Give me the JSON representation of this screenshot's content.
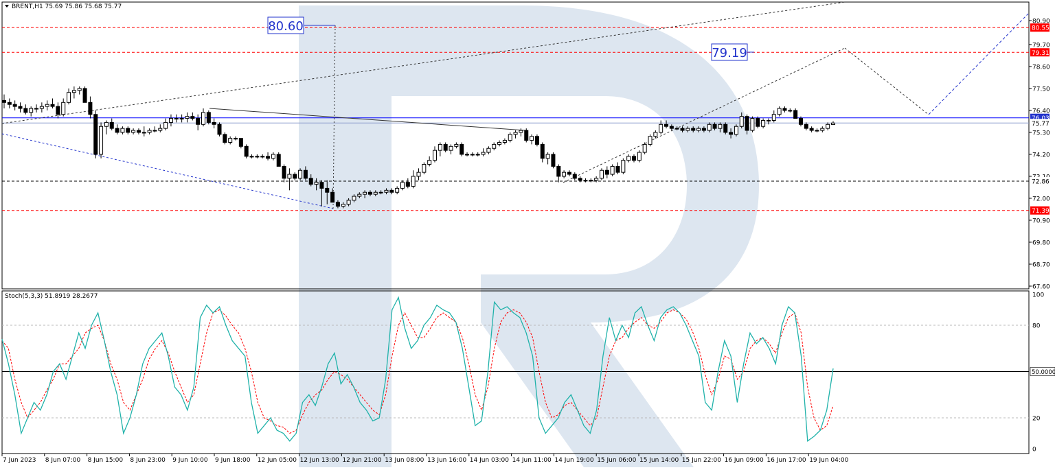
{
  "chart_data": {
    "type": "candlestick",
    "header": "BRENT,H1  75.69 75.86 75.68 75.77",
    "price_axis": {
      "min": 67.2,
      "max": 81.4,
      "ticks": [
        "80.90",
        "79.70",
        "78.60",
        "77.50",
        "76.40",
        "75.30",
        "74.20",
        "73.10",
        "72.00",
        "70.90",
        "69.80",
        "68.70",
        "67.60"
      ]
    },
    "time_labels": [
      "7 Jun 2023",
      "8 Jun 07:00",
      "8 Jun 15:00",
      "8 Jun 23:00",
      "9 Jun 10:00",
      "9 Jun 18:00",
      "12 Jun 05:00",
      "12 Jun 13:00",
      "12 Jun 21:00",
      "13 Jun 08:00",
      "13 Jun 16:00",
      "14 Jun 03:00",
      "14 Jun 11:00",
      "14 Jun 19:00",
      "15 Jun 06:00",
      "15 Jun 14:00",
      "15 Jun 22:00",
      "16 Jun 09:00",
      "16 Jun 17:00",
      "19 Jun 04:00"
    ],
    "levels": [
      {
        "label": "80.55",
        "value": 80.55,
        "color": "#ff0000"
      },
      {
        "label": "79.31",
        "value": 79.31,
        "color": "#ff0000"
      },
      {
        "label": "76.03",
        "value": 76.03,
        "color": "#0000ff"
      },
      {
        "label": "75.77",
        "value": 75.77,
        "color": "#000000"
      },
      {
        "label": "72.86",
        "value": 72.86,
        "color": "#000000"
      },
      {
        "label": "71.39",
        "value": 71.39,
        "color": "#ff0000"
      }
    ],
    "annotations": [
      {
        "text": "80.60",
        "value": 80.6
      },
      {
        "text": "79.19",
        "value": 79.19
      }
    ],
    "candles": [
      [
        76.9,
        77.2,
        76.5,
        76.8
      ],
      [
        76.8,
        77.0,
        76.5,
        76.7
      ],
      [
        76.7,
        76.9,
        76.4,
        76.6
      ],
      [
        76.6,
        76.8,
        76.3,
        76.5
      ],
      [
        76.5,
        76.7,
        76.2,
        76.3
      ],
      [
        76.3,
        76.6,
        76.1,
        76.5
      ],
      [
        76.5,
        76.7,
        76.3,
        76.5
      ],
      [
        76.5,
        76.8,
        76.3,
        76.6
      ],
      [
        76.6,
        76.9,
        76.4,
        76.7
      ],
      [
        76.7,
        77.0,
        76.5,
        76.6
      ],
      [
        76.6,
        76.8,
        76.0,
        76.2
      ],
      [
        76.2,
        77.0,
        76.1,
        76.8
      ],
      [
        76.8,
        77.5,
        76.7,
        77.3
      ],
      [
        77.3,
        77.6,
        77.0,
        77.4
      ],
      [
        77.4,
        77.6,
        77.2,
        77.5
      ],
      [
        77.5,
        77.6,
        76.8,
        76.8
      ],
      [
        76.8,
        77.1,
        76.0,
        76.2
      ],
      [
        76.2,
        76.4,
        74.0,
        74.2
      ],
      [
        74.2,
        75.8,
        74.0,
        75.6
      ],
      [
        75.6,
        75.9,
        75.2,
        75.8
      ],
      [
        75.8,
        76.0,
        75.4,
        75.5
      ],
      [
        75.5,
        75.7,
        75.2,
        75.3
      ],
      [
        75.3,
        75.6,
        75.2,
        75.5
      ],
      [
        75.5,
        75.6,
        75.2,
        75.3
      ],
      [
        75.3,
        75.5,
        75.2,
        75.4
      ],
      [
        75.4,
        75.5,
        75.2,
        75.3
      ],
      [
        75.3,
        75.6,
        75.1,
        75.3
      ],
      [
        75.3,
        75.5,
        75.2,
        75.4
      ],
      [
        75.4,
        75.6,
        75.3,
        75.4
      ],
      [
        75.4,
        75.7,
        75.3,
        75.5
      ],
      [
        75.5,
        76.0,
        75.4,
        75.8
      ],
      [
        75.8,
        76.2,
        75.6,
        76.0
      ],
      [
        76.0,
        76.2,
        75.8,
        76.0
      ],
      [
        76.0,
        76.2,
        75.8,
        76.0
      ],
      [
        76.0,
        76.3,
        75.8,
        76.1
      ],
      [
        76.1,
        76.3,
        75.9,
        76.0
      ],
      [
        76.0,
        76.2,
        75.4,
        75.7
      ],
      [
        75.7,
        76.5,
        75.6,
        76.3
      ],
      [
        76.3,
        76.4,
        75.7,
        75.8
      ],
      [
        75.8,
        76.0,
        75.5,
        75.7
      ],
      [
        75.7,
        75.8,
        75.1,
        75.2
      ],
      [
        75.2,
        75.3,
        74.7,
        74.8
      ],
      [
        74.8,
        75.1,
        74.7,
        75.0
      ],
      [
        75.0,
        75.1,
        74.9,
        75.0
      ],
      [
        75.0,
        75.0,
        74.5,
        74.6
      ],
      [
        74.6,
        74.7,
        74.0,
        74.1
      ],
      [
        74.1,
        74.2,
        74.0,
        74.1
      ],
      [
        74.1,
        74.2,
        74.0,
        74.1
      ],
      [
        74.1,
        74.2,
        74.0,
        74.1
      ],
      [
        74.1,
        74.3,
        73.9,
        74.0
      ],
      [
        74.0,
        74.3,
        73.9,
        74.2
      ],
      [
        74.2,
        74.3,
        73.6,
        73.6
      ],
      [
        73.6,
        73.7,
        72.8,
        73.0
      ],
      [
        73.0,
        73.5,
        72.4,
        73.2
      ],
      [
        73.2,
        73.3,
        72.9,
        73.0
      ],
      [
        73.0,
        73.5,
        72.9,
        73.4
      ],
      [
        73.4,
        73.6,
        72.9,
        73.0
      ],
      [
        73.0,
        73.2,
        72.6,
        72.7
      ],
      [
        72.7,
        73.0,
        72.4,
        72.8
      ],
      [
        72.8,
        72.9,
        71.6,
        72.5
      ],
      [
        72.5,
        72.9,
        71.7,
        72.3
      ],
      [
        72.3,
        72.5,
        71.8,
        71.8
      ],
      [
        71.8,
        71.9,
        71.5,
        71.6
      ],
      [
        71.6,
        71.8,
        71.5,
        71.7
      ],
      [
        71.7,
        72.0,
        71.6,
        71.9
      ],
      [
        71.9,
        72.2,
        71.8,
        72.1
      ],
      [
        72.1,
        72.3,
        72.0,
        72.2
      ],
      [
        72.2,
        72.4,
        72.0,
        72.3
      ],
      [
        72.3,
        72.4,
        72.1,
        72.2
      ],
      [
        72.2,
        72.4,
        72.1,
        72.3
      ],
      [
        72.3,
        72.4,
        72.2,
        72.3
      ],
      [
        72.3,
        72.5,
        72.2,
        72.4
      ],
      [
        72.4,
        72.5,
        72.2,
        72.3
      ],
      [
        72.3,
        72.6,
        72.2,
        72.5
      ],
      [
        72.5,
        72.9,
        72.4,
        72.8
      ],
      [
        72.8,
        73.0,
        72.5,
        72.6
      ],
      [
        72.6,
        73.4,
        72.5,
        73.1
      ],
      [
        73.1,
        73.5,
        72.9,
        73.3
      ],
      [
        73.3,
        73.8,
        73.2,
        73.7
      ],
      [
        73.7,
        74.1,
        73.6,
        73.9
      ],
      [
        73.9,
        74.6,
        73.8,
        74.4
      ],
      [
        74.4,
        74.8,
        74.1,
        74.7
      ],
      [
        74.7,
        74.8,
        74.3,
        74.4
      ],
      [
        74.4,
        74.7,
        74.2,
        74.6
      ],
      [
        74.6,
        74.8,
        74.5,
        74.7
      ],
      [
        74.7,
        74.8,
        74.1,
        74.2
      ],
      [
        74.2,
        74.3,
        74.1,
        74.2
      ],
      [
        74.2,
        74.3,
        74.1,
        74.2
      ],
      [
        74.2,
        74.3,
        74.1,
        74.2
      ],
      [
        74.2,
        74.5,
        74.1,
        74.3
      ],
      [
        74.3,
        74.6,
        74.2,
        74.5
      ],
      [
        74.5,
        74.8,
        74.4,
        74.7
      ],
      [
        74.7,
        74.9,
        74.6,
        74.8
      ],
      [
        74.8,
        75.0,
        74.7,
        74.9
      ],
      [
        74.9,
        75.3,
        74.8,
        75.2
      ],
      [
        75.2,
        75.4,
        75.0,
        75.3
      ],
      [
        75.3,
        75.5,
        75.1,
        75.4
      ],
      [
        75.4,
        75.5,
        74.8,
        74.9
      ],
      [
        74.9,
        75.2,
        74.7,
        75.1
      ],
      [
        75.1,
        75.2,
        74.6,
        74.7
      ],
      [
        74.7,
        74.8,
        73.8,
        74.0
      ],
      [
        74.0,
        74.3,
        73.7,
        74.2
      ],
      [
        74.2,
        74.3,
        73.5,
        73.6
      ],
      [
        73.6,
        73.7,
        72.8,
        73.1
      ],
      [
        73.1,
        73.4,
        73.0,
        73.3
      ],
      [
        73.3,
        73.4,
        73.1,
        73.2
      ],
      [
        73.2,
        73.3,
        72.9,
        73.0
      ],
      [
        73.0,
        73.1,
        72.8,
        72.9
      ],
      [
        72.9,
        73.0,
        72.8,
        72.9
      ],
      [
        72.9,
        73.0,
        72.8,
        72.9
      ],
      [
        72.9,
        73.1,
        72.8,
        73.0
      ],
      [
        73.0,
        73.5,
        72.9,
        73.4
      ],
      [
        73.4,
        73.6,
        73.0,
        73.2
      ],
      [
        73.2,
        73.7,
        73.1,
        73.6
      ],
      [
        73.6,
        73.8,
        73.2,
        73.3
      ],
      [
        73.3,
        74.0,
        73.2,
        73.9
      ],
      [
        73.9,
        74.2,
        73.8,
        74.1
      ],
      [
        74.1,
        74.2,
        73.8,
        73.9
      ],
      [
        73.9,
        74.4,
        73.8,
        74.3
      ],
      [
        74.3,
        74.8,
        74.2,
        74.7
      ],
      [
        74.7,
        75.2,
        74.6,
        75.1
      ],
      [
        75.1,
        75.4,
        75.0,
        75.3
      ],
      [
        75.3,
        75.9,
        75.2,
        75.7
      ],
      [
        75.7,
        75.9,
        75.5,
        75.6
      ],
      [
        75.6,
        75.7,
        75.4,
        75.5
      ],
      [
        75.5,
        75.6,
        75.4,
        75.5
      ],
      [
        75.5,
        75.6,
        75.3,
        75.4
      ],
      [
        75.4,
        75.6,
        75.3,
        75.5
      ],
      [
        75.5,
        75.6,
        75.3,
        75.4
      ],
      [
        75.4,
        75.6,
        75.3,
        75.5
      ],
      [
        75.5,
        75.6,
        75.3,
        75.4
      ],
      [
        75.4,
        75.8,
        75.3,
        75.7
      ],
      [
        75.7,
        75.8,
        75.4,
        75.5
      ],
      [
        75.5,
        75.8,
        75.3,
        75.7
      ],
      [
        75.7,
        75.8,
        75.2,
        75.3
      ],
      [
        75.3,
        75.5,
        75.0,
        75.2
      ],
      [
        75.2,
        75.7,
        75.1,
        75.6
      ],
      [
        75.6,
        76.3,
        75.5,
        76.1
      ],
      [
        76.1,
        76.2,
        75.2,
        75.4
      ],
      [
        75.4,
        76.1,
        75.3,
        76.0
      ],
      [
        76.0,
        76.1,
        75.5,
        75.6
      ],
      [
        75.6,
        76.0,
        75.5,
        75.9
      ],
      [
        75.9,
        76.0,
        75.7,
        75.9
      ],
      [
        75.9,
        76.4,
        75.8,
        76.2
      ],
      [
        76.2,
        76.6,
        76.1,
        76.5
      ],
      [
        76.5,
        76.6,
        76.3,
        76.4
      ],
      [
        76.4,
        76.5,
        76.3,
        76.4
      ],
      [
        76.4,
        76.5,
        76.0,
        76.0
      ],
      [
        76.0,
        76.1,
        75.6,
        75.7
      ],
      [
        75.7,
        75.8,
        75.4,
        75.5
      ],
      [
        75.5,
        75.6,
        75.3,
        75.4
      ],
      [
        75.4,
        75.5,
        75.3,
        75.4
      ],
      [
        75.4,
        75.6,
        75.3,
        75.5
      ],
      [
        75.5,
        75.8,
        75.4,
        75.7
      ],
      [
        75.69,
        75.86,
        75.68,
        75.77
      ]
    ],
    "forecast": [
      {
        "time": "12 Jun 15:00",
        "price": 71.39
      },
      {
        "time": "",
        "price": 79.31
      },
      {
        "time": "",
        "price": 76.03
      },
      {
        "time": "",
        "price": 80.9
      }
    ],
    "stochastic": {
      "label": "Stoch(5,3,3) 51.8919 28.2677",
      "axis_ticks": [
        "100",
        "80",
        "50.0000",
        "20",
        "0"
      ],
      "main_color": "#20b2aa",
      "signal_color": "#ff0000",
      "main": [
        71,
        55,
        35,
        10,
        20,
        30,
        25,
        35,
        50,
        55,
        45,
        60,
        75,
        65,
        80,
        88,
        70,
        50,
        35,
        10,
        20,
        35,
        55,
        65,
        70,
        75,
        60,
        40,
        35,
        25,
        40,
        85,
        93,
        88,
        92,
        80,
        70,
        65,
        60,
        30,
        10,
        15,
        20,
        12,
        10,
        5,
        10,
        30,
        35,
        28,
        40,
        55,
        62,
        42,
        48,
        40,
        30,
        25,
        18,
        20,
        45,
        90,
        98,
        78,
        65,
        70,
        80,
        85,
        93,
        90,
        88,
        82,
        65,
        40,
        15,
        18,
        50,
        95,
        90,
        92,
        88,
        85,
        75,
        60,
        20,
        10,
        15,
        20,
        30,
        35,
        25,
        15,
        10,
        25,
        60,
        85,
        70,
        80,
        72,
        88,
        92,
        80,
        70,
        85,
        90,
        92,
        88,
        80,
        70,
        60,
        30,
        25,
        50,
        70,
        60,
        30,
        55,
        75,
        68,
        72,
        65,
        55,
        80,
        92,
        88,
        60,
        5,
        8,
        12,
        25,
        52
      ],
      "signal": [
        70,
        65,
        45,
        30,
        20,
        25,
        30,
        38,
        45,
        55,
        55,
        60,
        65,
        75,
        78,
        80,
        70,
        55,
        45,
        30,
        25,
        35,
        45,
        58,
        65,
        70,
        62,
        50,
        40,
        30,
        35,
        55,
        75,
        88,
        90,
        86,
        80,
        75,
        65,
        50,
        30,
        20,
        18,
        15,
        14,
        10,
        12,
        22,
        30,
        35,
        38,
        45,
        50,
        48,
        45,
        40,
        35,
        30,
        25,
        22,
        35,
        60,
        80,
        88,
        80,
        72,
        72,
        78,
        85,
        88,
        85,
        82,
        72,
        55,
        35,
        25,
        40,
        65,
        82,
        88,
        90,
        88,
        82,
        72,
        50,
        30,
        20,
        22,
        28,
        30,
        25,
        20,
        15,
        20,
        40,
        60,
        70,
        72,
        78,
        82,
        85,
        80,
        78,
        82,
        88,
        90,
        88,
        84,
        76,
        65,
        48,
        35,
        45,
        60,
        58,
        45,
        50,
        65,
        70,
        72,
        68,
        62,
        75,
        85,
        88,
        75,
        40,
        20,
        12,
        15,
        28
      ]
    }
  }
}
